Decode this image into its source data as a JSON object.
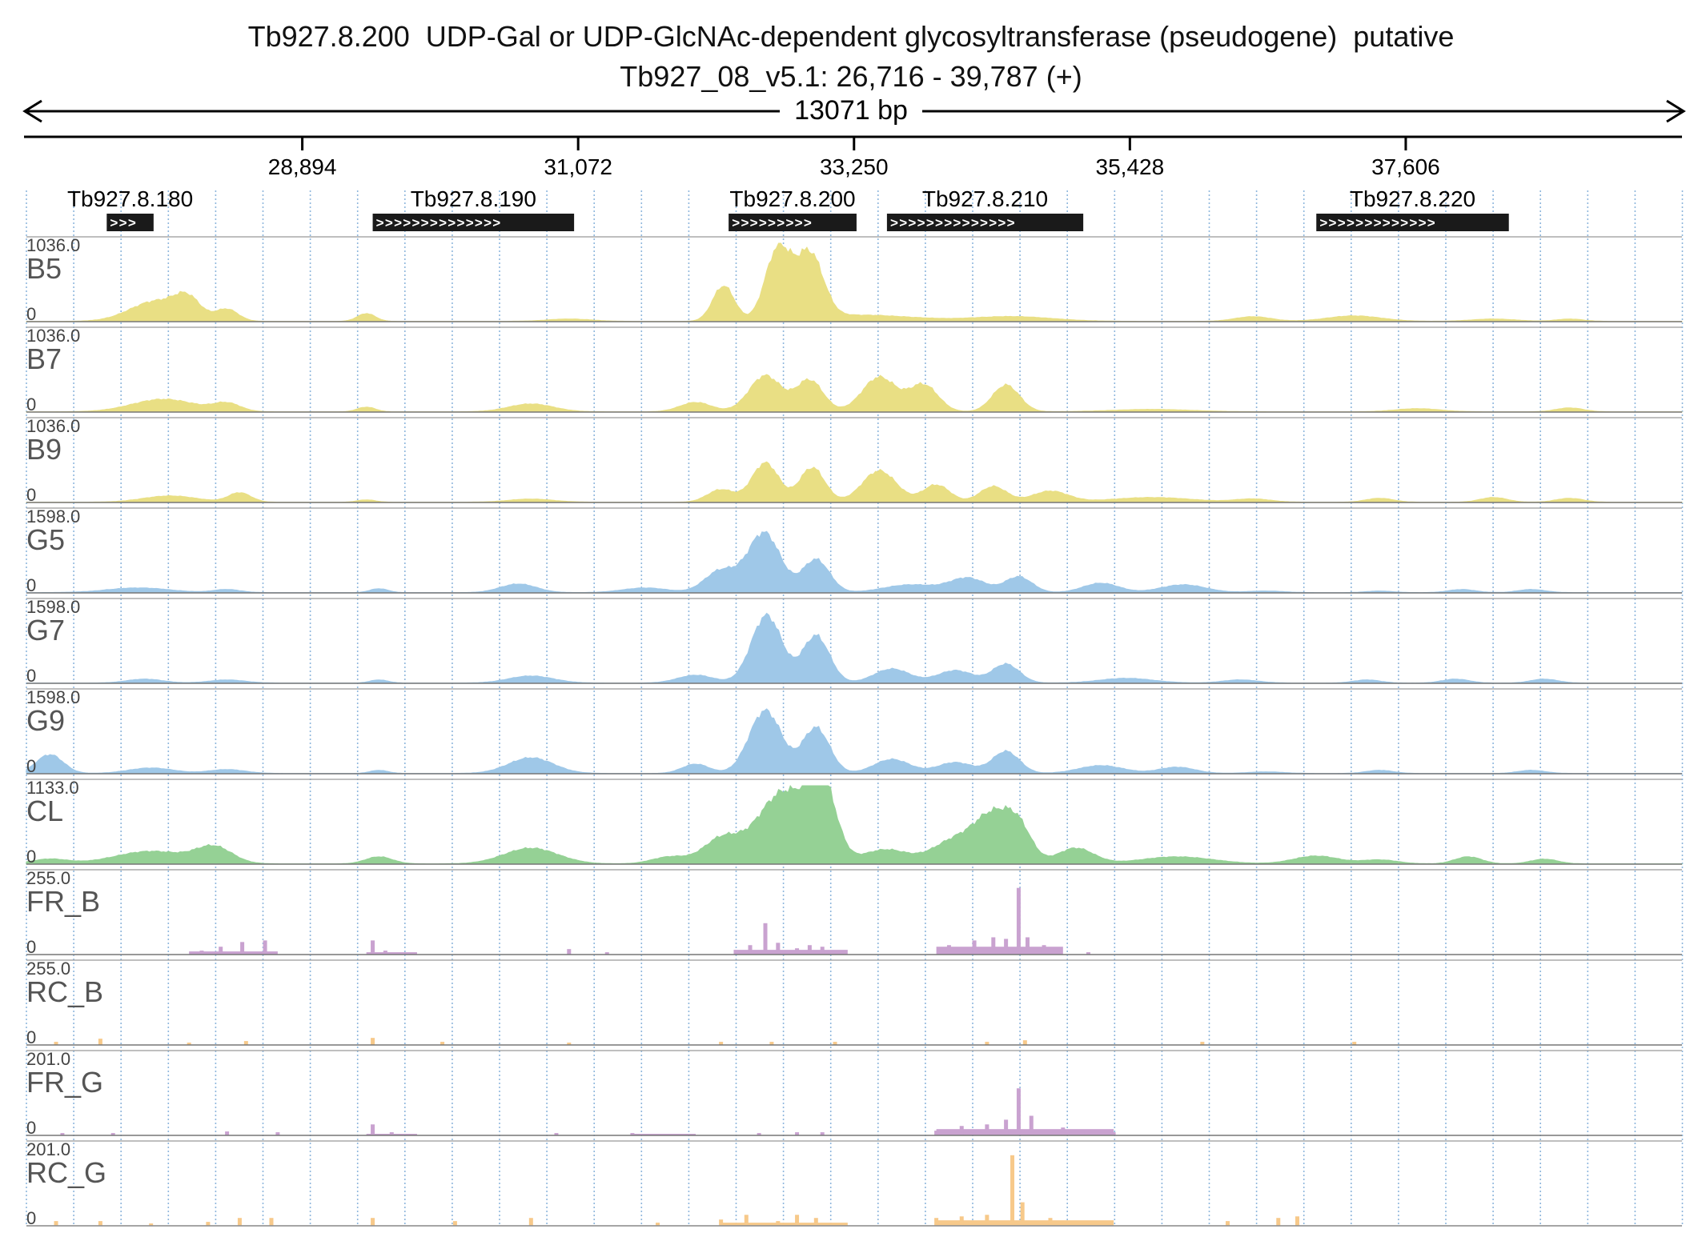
{
  "title": {
    "line1": "Tb927.8.200  UDP-Gal or UDP-GlcNAc-dependent glycosyltransferase (pseudogene)  putative",
    "line2": "Tb927_08_v5.1: 26,716 - 39,787 (+)"
  },
  "span_label": "13071 bp",
  "region": {
    "start": 26716,
    "end": 39787
  },
  "ruler_ticks": [
    {
      "pos": 28894,
      "label": "28,894"
    },
    {
      "pos": 31072,
      "label": "31,072"
    },
    {
      "pos": 33250,
      "label": "33,250"
    },
    {
      "pos": 35428,
      "label": "35,428"
    },
    {
      "pos": 37606,
      "label": "37,606"
    }
  ],
  "genes": [
    {
      "id": "Tb927.8.180",
      "start": 27350,
      "end": 27720,
      "strand": "+",
      "arrows": ">>>"
    },
    {
      "id": "Tb927.8.190",
      "start": 29450,
      "end": 31040,
      "strand": "+",
      "arrows": ">>>>>>>>>>>>>>"
    },
    {
      "id": "Tb927.8.200",
      "start": 32260,
      "end": 33270,
      "strand": "+",
      "arrows": ">>>>>>>>>"
    },
    {
      "id": "Tb927.8.210",
      "start": 33510,
      "end": 35060,
      "strand": "+",
      "arrows": ">>>>>>>>>>>>>>"
    },
    {
      "id": "Tb927.8.220",
      "start": 36900,
      "end": 38420,
      "strand": "+",
      "arrows": ">>>>>>>>>>>>>"
    }
  ],
  "colors": {
    "bloodstream": "#e9df84",
    "procyclic": "#9fc8e8",
    "cell_line": "#95d195",
    "forward_reads": "#c9a2d0",
    "reverse_reads": "#f7c98a"
  },
  "tracks": [
    {
      "name": "B5",
      "max": "1036.0",
      "min": "0",
      "color": "bloodstream",
      "peaks": [
        [
          27750,
          600,
          0.26
        ],
        [
          27990,
          280,
          0.22
        ],
        [
          28300,
          250,
          0.15
        ],
        [
          29400,
          200,
          0.1
        ],
        [
          31000,
          500,
          0.03
        ],
        [
          32220,
          240,
          0.45
        ],
        [
          32650,
          280,
          0.9
        ],
        [
          32900,
          300,
          0.82
        ],
        [
          33300,
          1200,
          0.08
        ],
        [
          34500,
          900,
          0.06
        ],
        [
          36400,
          400,
          0.06
        ],
        [
          37200,
          600,
          0.07
        ],
        [
          38300,
          500,
          0.03
        ],
        [
          38900,
          300,
          0.03
        ]
      ]
    },
    {
      "name": "B7",
      "max": "1036.0",
      "min": "0",
      "color": "bloodstream",
      "peaks": [
        [
          27800,
          700,
          0.16
        ],
        [
          28300,
          300,
          0.1
        ],
        [
          29400,
          200,
          0.06
        ],
        [
          30700,
          500,
          0.1
        ],
        [
          32000,
          350,
          0.12
        ],
        [
          32550,
          360,
          0.46
        ],
        [
          32900,
          300,
          0.4
        ],
        [
          33450,
          380,
          0.44
        ],
        [
          33800,
          320,
          0.34
        ],
        [
          34450,
          300,
          0.34
        ],
        [
          35600,
          900,
          0.03
        ],
        [
          37700,
          500,
          0.04
        ],
        [
          38900,
          300,
          0.05
        ]
      ]
    },
    {
      "name": "B9",
      "max": "1036.0",
      "min": "0",
      "color": "bloodstream",
      "peaks": [
        [
          27850,
          600,
          0.08
        ],
        [
          28400,
          250,
          0.12
        ],
        [
          29400,
          200,
          0.03
        ],
        [
          30700,
          500,
          0.04
        ],
        [
          32200,
          300,
          0.16
        ],
        [
          32550,
          300,
          0.5
        ],
        [
          32920,
          280,
          0.44
        ],
        [
          33450,
          380,
          0.4
        ],
        [
          33900,
          300,
          0.22
        ],
        [
          34350,
          300,
          0.2
        ],
        [
          34800,
          400,
          0.14
        ],
        [
          35600,
          900,
          0.06
        ],
        [
          36400,
          400,
          0.04
        ],
        [
          37400,
          300,
          0.05
        ],
        [
          38300,
          300,
          0.06
        ],
        [
          38900,
          300,
          0.05
        ]
      ]
    },
    {
      "name": "G5",
      "max": "1598.0",
      "min": "0",
      "color": "procyclic",
      "peaks": [
        [
          27600,
          700,
          0.06
        ],
        [
          28300,
          300,
          0.04
        ],
        [
          29500,
          200,
          0.05
        ],
        [
          30600,
          400,
          0.11
        ],
        [
          31600,
          500,
          0.06
        ],
        [
          32200,
          360,
          0.28
        ],
        [
          32540,
          360,
          0.76
        ],
        [
          32950,
          300,
          0.42
        ],
        [
          33700,
          600,
          0.1
        ],
        [
          34150,
          400,
          0.18
        ],
        [
          34550,
          300,
          0.2
        ],
        [
          35200,
          400,
          0.12
        ],
        [
          35850,
          500,
          0.1
        ],
        [
          36500,
          400,
          0.02
        ],
        [
          37400,
          300,
          0.02
        ],
        [
          38050,
          300,
          0.04
        ],
        [
          38600,
          300,
          0.04
        ]
      ]
    },
    {
      "name": "G7",
      "max": "1598.0",
      "min": "0",
      "color": "procyclic",
      "peaks": [
        [
          27650,
          400,
          0.05
        ],
        [
          28300,
          400,
          0.04
        ],
        [
          29500,
          200,
          0.04
        ],
        [
          30700,
          500,
          0.09
        ],
        [
          32000,
          400,
          0.1
        ],
        [
          32560,
          340,
          0.86
        ],
        [
          32950,
          300,
          0.6
        ],
        [
          33550,
          400,
          0.18
        ],
        [
          34050,
          400,
          0.16
        ],
        [
          34450,
          300,
          0.24
        ],
        [
          35400,
          600,
          0.06
        ],
        [
          36300,
          400,
          0.04
        ],
        [
          37300,
          300,
          0.04
        ],
        [
          38000,
          300,
          0.05
        ],
        [
          38700,
          300,
          0.05
        ]
      ]
    },
    {
      "name": "G9",
      "max": "1598.0",
      "min": "0",
      "color": "procyclic",
      "peaks": [
        [
          26900,
          300,
          0.24
        ],
        [
          27700,
          500,
          0.07
        ],
        [
          28300,
          400,
          0.05
        ],
        [
          29500,
          200,
          0.04
        ],
        [
          30700,
          500,
          0.2
        ],
        [
          32000,
          300,
          0.12
        ],
        [
          32550,
          360,
          0.8
        ],
        [
          32950,
          300,
          0.58
        ],
        [
          33550,
          400,
          0.18
        ],
        [
          34050,
          400,
          0.14
        ],
        [
          34450,
          300,
          0.28
        ],
        [
          35200,
          500,
          0.1
        ],
        [
          35800,
          400,
          0.08
        ],
        [
          36500,
          400,
          0.02
        ],
        [
          37400,
          300,
          0.04
        ],
        [
          38600,
          300,
          0.04
        ]
      ]
    },
    {
      "name": "CL",
      "max": "1133.0",
      "min": "0",
      "color": "cell_line",
      "peaks": [
        [
          26900,
          400,
          0.06
        ],
        [
          27700,
          800,
          0.16
        ],
        [
          28200,
          400,
          0.2
        ],
        [
          29500,
          300,
          0.09
        ],
        [
          30700,
          600,
          0.2
        ],
        [
          31800,
          400,
          0.09
        ],
        [
          32200,
          400,
          0.3
        ],
        [
          32700,
          600,
          0.92
        ],
        [
          33000,
          300,
          0.85
        ],
        [
          33500,
          500,
          0.18
        ],
        [
          34050,
          500,
          0.3
        ],
        [
          34350,
          400,
          0.55
        ],
        [
          34550,
          300,
          0.4
        ],
        [
          35000,
          400,
          0.2
        ],
        [
          35800,
          800,
          0.09
        ],
        [
          36900,
          500,
          0.1
        ],
        [
          37400,
          400,
          0.05
        ],
        [
          38100,
          300,
          0.09
        ],
        [
          38700,
          300,
          0.06
        ]
      ]
    }
  ],
  "read_tracks": [
    {
      "name": "FR_B",
      "max": "255.0",
      "min": "0",
      "color": "forward_reads",
      "spikes": [
        [
          28100,
          0.05
        ],
        [
          28250,
          0.1
        ],
        [
          28420,
          0.16
        ],
        [
          28600,
          0.18
        ],
        [
          29450,
          0.18
        ],
        [
          29550,
          0.05
        ],
        [
          31000,
          0.07
        ],
        [
          31300,
          0.03
        ],
        [
          32430,
          0.12
        ],
        [
          32550,
          0.4
        ],
        [
          32650,
          0.15
        ],
        [
          32800,
          0.08
        ],
        [
          32900,
          0.12
        ],
        [
          33000,
          0.1
        ],
        [
          33150,
          0.05
        ],
        [
          34000,
          0.12
        ],
        [
          34200,
          0.18
        ],
        [
          34350,
          0.22
        ],
        [
          34450,
          0.2
        ],
        [
          34550,
          0.85
        ],
        [
          34620,
          0.22
        ],
        [
          34750,
          0.12
        ],
        [
          35100,
          0.03
        ]
      ],
      "base": [
        [
          28000,
          28700,
          0.04
        ],
        [
          29400,
          29800,
          0.03
        ],
        [
          32300,
          33200,
          0.06
        ],
        [
          33900,
          34900,
          0.1
        ]
      ]
    },
    {
      "name": "RC_B",
      "max": "255.0",
      "min": "0",
      "color": "reverse_reads",
      "spikes": [
        [
          26950,
          0.04
        ],
        [
          27300,
          0.08
        ],
        [
          28000,
          0.03
        ],
        [
          28450,
          0.05
        ],
        [
          29450,
          0.09
        ],
        [
          30000,
          0.04
        ],
        [
          31000,
          0.03
        ],
        [
          32200,
          0.04
        ],
        [
          32600,
          0.04
        ],
        [
          33100,
          0.04
        ],
        [
          34300,
          0.04
        ],
        [
          34600,
          0.06
        ],
        [
          36000,
          0.04
        ],
        [
          37200,
          0.04
        ]
      ],
      "base": []
    },
    {
      "name": "FR_G",
      "max": "201.0",
      "min": "0",
      "color": "forward_reads",
      "spikes": [
        [
          27000,
          0.03
        ],
        [
          27400,
          0.03
        ],
        [
          28300,
          0.05
        ],
        [
          28700,
          0.04
        ],
        [
          29450,
          0.14
        ],
        [
          29600,
          0.04
        ],
        [
          30900,
          0.03
        ],
        [
          31500,
          0.03
        ],
        [
          32500,
          0.03
        ],
        [
          32800,
          0.04
        ],
        [
          33000,
          0.04
        ],
        [
          33900,
          0.06
        ],
        [
          34100,
          0.12
        ],
        [
          34300,
          0.14
        ],
        [
          34450,
          0.2
        ],
        [
          34550,
          0.6
        ],
        [
          34650,
          0.25
        ],
        [
          34900,
          0.1
        ],
        [
          35050,
          0.06
        ],
        [
          35300,
          0.04
        ]
      ],
      "base": [
        [
          29400,
          29800,
          0.02
        ],
        [
          31500,
          32000,
          0.02
        ],
        [
          33900,
          35300,
          0.08
        ]
      ]
    },
    {
      "name": "RC_G",
      "max": "201.0",
      "min": "0",
      "color": "reverse_reads",
      "spikes": [
        [
          26950,
          0.06
        ],
        [
          27300,
          0.06
        ],
        [
          27700,
          0.03
        ],
        [
          28150,
          0.05
        ],
        [
          28400,
          0.1
        ],
        [
          28650,
          0.1
        ],
        [
          29450,
          0.1
        ],
        [
          30100,
          0.06
        ],
        [
          30700,
          0.1
        ],
        [
          31700,
          0.04
        ],
        [
          32200,
          0.08
        ],
        [
          32400,
          0.14
        ],
        [
          32650,
          0.06
        ],
        [
          32800,
          0.14
        ],
        [
          32950,
          0.1
        ],
        [
          33900,
          0.1
        ],
        [
          34100,
          0.12
        ],
        [
          34300,
          0.14
        ],
        [
          34500,
          0.9
        ],
        [
          34580,
          0.3
        ],
        [
          34800,
          0.1
        ],
        [
          35100,
          0.06
        ],
        [
          36200,
          0.06
        ],
        [
          36600,
          0.1
        ],
        [
          36750,
          0.12
        ]
      ],
      "base": [
        [
          32200,
          33200,
          0.04
        ],
        [
          33900,
          35300,
          0.07
        ]
      ]
    }
  ]
}
